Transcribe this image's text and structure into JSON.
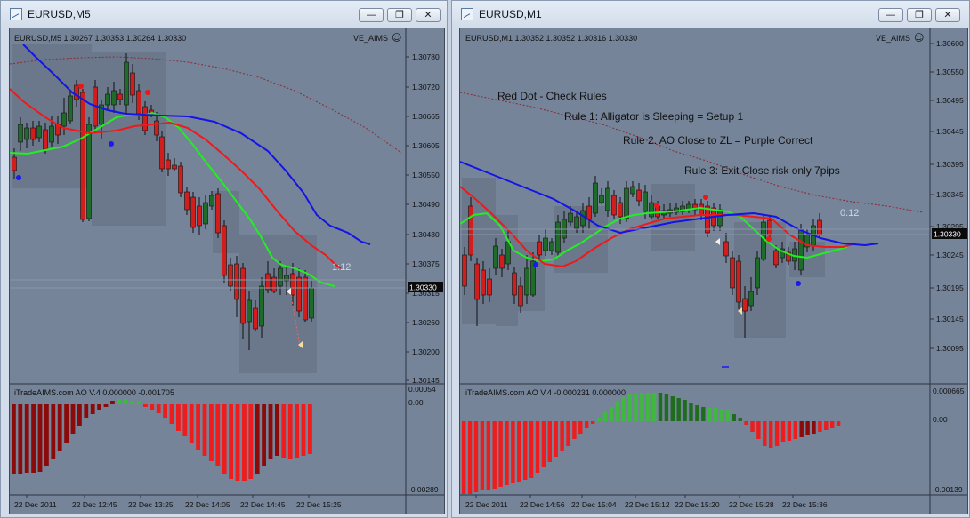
{
  "colors": {
    "bg": "#758499",
    "bull": "#1f6b2a",
    "bear": "#d21d1d",
    "jaw": "#1414e6",
    "teeth": "#ee1a1a",
    "lips": "#22ee22",
    "ma": "#8a2a34",
    "ao_dark_red": "#8b0a0a",
    "ao_red": "#ee1c1c",
    "ao_green": "#3eb83e",
    "ao_dark_green": "#1f6b1f",
    "dot_red": "#ee1515",
    "dot_blue": "#1a1aee"
  },
  "window_left": {
    "title": "EURUSD,M5",
    "buttons": [
      "minimize-icon",
      "restore-icon",
      "close-icon"
    ],
    "header_text": "EURUSD,M5  1.30267 1.30353 1.30264 1.30330",
    "indicator_name": "VE_AIMS",
    "price_labels": [
      "1.30780",
      "1.30720",
      "1.30665",
      "1.30605",
      "1.30550",
      "1.30490",
      "1.30430",
      "1.30375",
      "1.30315",
      "1.30260",
      "1.30200",
      "1.30145"
    ],
    "current_price": "1.30330",
    "timer": "1:12",
    "ao_header": "iTradeAIMS.com AO V.4 0.000000 -0.001705",
    "ao_labels": [
      "0.00054",
      "0.00",
      "-0.00289"
    ],
    "time_labels": [
      "22 Dec 2011",
      "22 Dec 12:45",
      "22 Dec 13:25",
      "22 Dec 14:05",
      "22 Dec 14:45",
      "22 Dec 15:25"
    ]
  },
  "window_right": {
    "title": "EURUSD,M1",
    "buttons": [
      "minimize-icon",
      "restore-icon",
      "close-icon"
    ],
    "header_text": "EURUSD,M1  1.30352 1.30352 1.30316 1.30330",
    "indicator_name": "VE_AIMS",
    "price_labels": [
      "1.30600",
      "1.30550",
      "1.30495",
      "1.30445",
      "1.30395",
      "1.30345",
      "1.30295",
      "1.30245",
      "1.30195",
      "1.30145",
      "1.30095"
    ],
    "current_price": "1.30330",
    "timer": "0:12",
    "annotations": [
      "Red Dot - Check Rules",
      "Rule 1: Alligator is Sleeping = Setup 1",
      "Rule 2. AO Close to ZL = Purple Correct",
      "Rule 3: Exit Close risk only 7pips"
    ],
    "ao_header": "iTradeAIMS.com AO V.4 -0.000231 0.000000",
    "ao_labels": [
      "0.000665",
      "0.00",
      "-0.00139"
    ],
    "time_labels": [
      "22 Dec 2011",
      "22 Dec 14:56",
      "22 Dec 15:04",
      "22 Dec 15:12",
      "22 Dec 15:20",
      "22 Dec 15:28",
      "22 Dec 15:36"
    ]
  }
}
